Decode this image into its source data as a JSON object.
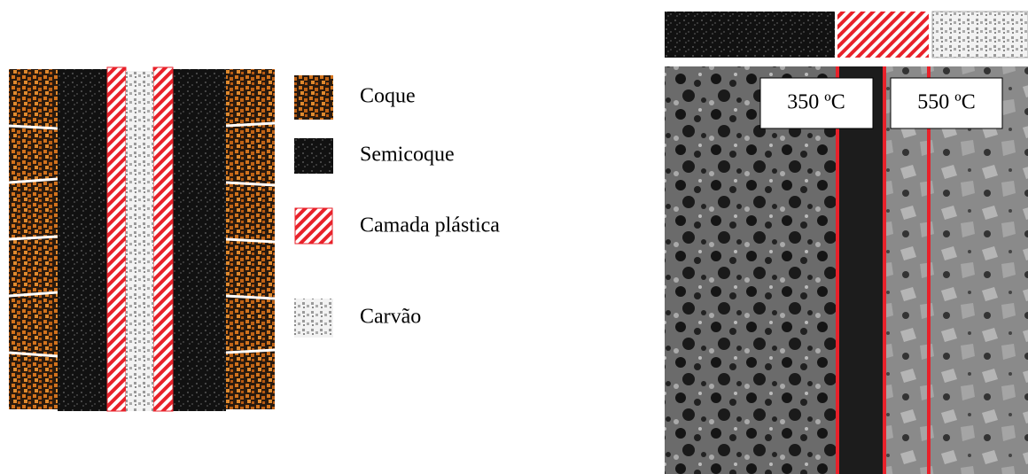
{
  "legend": {
    "items": [
      {
        "label": "Coque"
      },
      {
        "label": "Semicoque"
      },
      {
        "label": "Camada plástica"
      },
      {
        "label": "Carvão"
      }
    ]
  },
  "micrograph": {
    "labels": [
      "350 ºC",
      "550 ºC"
    ]
  }
}
